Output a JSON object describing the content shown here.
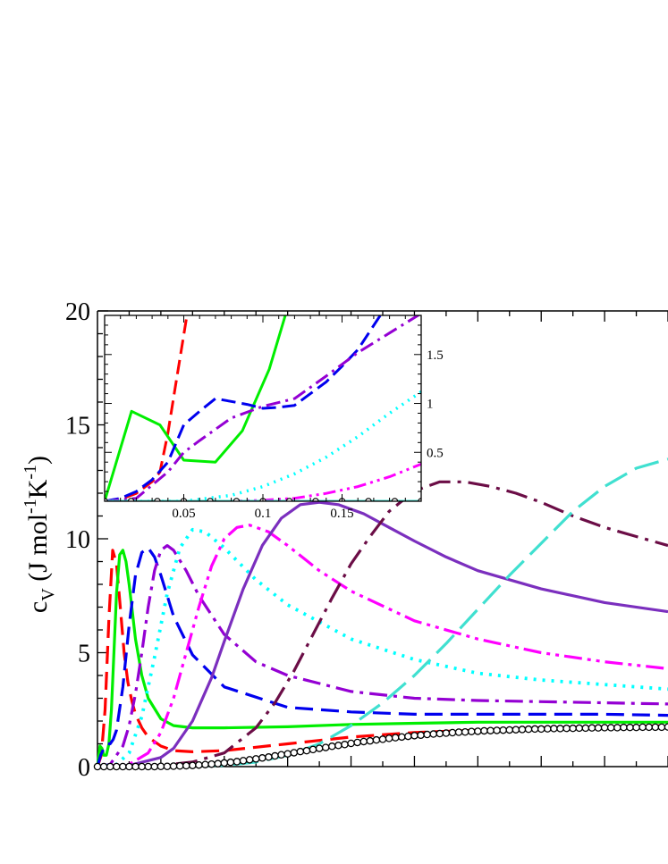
{
  "chart_data": {
    "main": {
      "type": "line",
      "ylabel": {
        "base": "c",
        "sub": "V",
        "pre": " (J mol",
        "sup1": "-1",
        "mid": "K",
        "sup2": "-1",
        "post": ")"
      },
      "xlim": [
        0,
        0.9
      ],
      "ylim": [
        0,
        20
      ],
      "yticks": [
        0,
        5,
        10,
        15,
        20
      ],
      "yticks_minor_step": 1,
      "xticks_minor_step": 0.05,
      "xticks_major_step": 0.1,
      "series": [
        {
          "color": "#ff0000",
          "dash": "20,9",
          "width": 3.2,
          "x": [
            0,
            0.006,
            0.012,
            0.018,
            0.024,
            0.03,
            0.036,
            0.042,
            0.048,
            0.054,
            0.06,
            0.07,
            0.08,
            0.1,
            0.12,
            0.15,
            0.2,
            0.3,
            0.4,
            0.5,
            0.6,
            0.7,
            0.8,
            0.9
          ],
          "y": [
            0,
            0.5,
            2.5,
            6.5,
            9.5,
            8.9,
            7.0,
            5.0,
            3.7,
            2.9,
            2.3,
            1.7,
            1.3,
            0.9,
            0.7,
            0.65,
            0.7,
            1.0,
            1.3,
            1.5,
            1.6,
            1.7,
            1.75,
            1.8
          ]
        },
        {
          "color": "#00ee00",
          "dash": "",
          "width": 3.2,
          "x": [
            0,
            0.004,
            0.007,
            0.01,
            0.014,
            0.018,
            0.022,
            0.026,
            0.03,
            0.035,
            0.04,
            0.045,
            0.05,
            0.055,
            0.06,
            0.07,
            0.08,
            0.1,
            0.12,
            0.15,
            0.2,
            0.3,
            0.4,
            0.5,
            0.6,
            0.7,
            0.8,
            0.9
          ],
          "y": [
            0,
            0.9,
            0.8,
            0.5,
            0.5,
            1.0,
            2.5,
            5.0,
            7.6,
            9.3,
            9.5,
            9.0,
            8.0,
            6.8,
            5.6,
            4.0,
            3.0,
            2.1,
            1.8,
            1.7,
            1.7,
            1.75,
            1.85,
            1.9,
            1.95,
            1.95,
            1.95,
            1.95
          ]
        },
        {
          "color": "#0000ee",
          "dash": "20,9",
          "width": 3.2,
          "x": [
            0,
            0.005,
            0.01,
            0.015,
            0.02,
            0.025,
            0.03,
            0.04,
            0.05,
            0.06,
            0.07,
            0.08,
            0.09,
            0.1,
            0.12,
            0.15,
            0.2,
            0.3,
            0.4,
            0.5,
            0.6,
            0.7,
            0.8,
            0.9
          ],
          "y": [
            0,
            0.5,
            0.8,
            1.0,
            1.0,
            1.2,
            1.6,
            3.5,
            6.2,
            8.4,
            9.4,
            9.6,
            9.2,
            8.4,
            6.6,
            4.9,
            3.5,
            2.6,
            2.4,
            2.3,
            2.3,
            2.3,
            2.3,
            2.25
          ]
        },
        {
          "color": "#9400d3",
          "dash": "20,7,4,7",
          "width": 3.2,
          "x": [
            0,
            0.02,
            0.04,
            0.05,
            0.06,
            0.07,
            0.08,
            0.09,
            0.1,
            0.11,
            0.12,
            0.14,
            0.16,
            0.2,
            0.25,
            0.3,
            0.4,
            0.5,
            0.6,
            0.7,
            0.8,
            0.9
          ],
          "y": [
            0,
            0.1,
            0.9,
            1.8,
            3.2,
            5.0,
            7.0,
            8.6,
            9.5,
            9.7,
            9.5,
            8.6,
            7.5,
            5.8,
            4.6,
            4.0,
            3.3,
            3.0,
            2.9,
            2.85,
            2.8,
            2.75
          ]
        },
        {
          "color": "#00ffff",
          "dash": "3,7",
          "width": 3.8,
          "x": [
            0,
            0.03,
            0.05,
            0.07,
            0.09,
            0.11,
            0.13,
            0.15,
            0.17,
            0.2,
            0.25,
            0.3,
            0.4,
            0.5,
            0.6,
            0.7,
            0.8,
            0.9
          ],
          "y": [
            0,
            0.1,
            0.6,
            2.2,
            4.8,
            7.6,
            9.6,
            10.4,
            10.3,
            9.6,
            8.2,
            7.1,
            5.6,
            4.7,
            4.1,
            3.8,
            3.6,
            3.4
          ]
        },
        {
          "color": "#ff00ff",
          "dash": "20,6,4,6,4,6",
          "width": 3.2,
          "x": [
            0,
            0.05,
            0.08,
            0.1,
            0.12,
            0.14,
            0.16,
            0.18,
            0.2,
            0.22,
            0.24,
            0.27,
            0.3,
            0.35,
            0.4,
            0.5,
            0.6,
            0.7,
            0.8,
            0.9
          ],
          "y": [
            0,
            0.1,
            0.6,
            1.5,
            3.0,
            5.0,
            7.0,
            8.8,
            10.0,
            10.5,
            10.6,
            10.3,
            9.7,
            8.6,
            7.7,
            6.4,
            5.6,
            5.0,
            4.6,
            4.3
          ]
        },
        {
          "color": "#7b2fbe",
          "dash": "",
          "width": 3.2,
          "x": [
            0,
            0.05,
            0.1,
            0.12,
            0.15,
            0.18,
            0.2,
            0.23,
            0.26,
            0.29,
            0.32,
            0.35,
            0.38,
            0.42,
            0.46,
            0.5,
            0.55,
            0.6,
            0.7,
            0.8,
            0.9
          ],
          "y": [
            0,
            0.05,
            0.4,
            0.8,
            2.0,
            3.9,
            5.5,
            7.8,
            9.7,
            10.9,
            11.5,
            11.6,
            11.5,
            11.1,
            10.5,
            9.9,
            9.2,
            8.6,
            7.8,
            7.2,
            6.8
          ]
        },
        {
          "color": "#6b0d46",
          "dash": "24,8,4,8",
          "width": 3.2,
          "x": [
            0,
            0.1,
            0.15,
            0.2,
            0.25,
            0.28,
            0.31,
            0.34,
            0.37,
            0.4,
            0.43,
            0.46,
            0.5,
            0.54,
            0.58,
            0.62,
            0.66,
            0.7,
            0.75,
            0.8,
            0.85,
            0.9
          ],
          "y": [
            0,
            0.05,
            0.2,
            0.6,
            1.7,
            2.8,
            4.2,
            5.8,
            7.4,
            8.9,
            10.1,
            11.2,
            12.1,
            12.5,
            12.5,
            12.3,
            12.0,
            11.6,
            11.0,
            10.5,
            10.1,
            9.7
          ]
        },
        {
          "color": "#40e0d0",
          "dash": "28,10",
          "width": 3.2,
          "x": [
            0,
            0.2,
            0.25,
            0.3,
            0.35,
            0.4,
            0.45,
            0.5,
            0.55,
            0.6,
            0.65,
            0.7,
            0.75,
            0.8,
            0.85,
            0.9
          ],
          "y": [
            0,
            0.05,
            0.2,
            0.5,
            1.0,
            1.8,
            2.8,
            4.0,
            5.4,
            6.9,
            8.4,
            9.8,
            11.2,
            12.3,
            13.1,
            13.5
          ]
        },
        {
          "color": "#000000",
          "dash": "",
          "width": 0,
          "markers": "circle",
          "x": [
            0,
            0.01,
            0.02,
            0.03,
            0.04,
            0.05,
            0.06,
            0.07,
            0.08,
            0.09,
            0.1,
            0.11,
            0.12,
            0.13,
            0.14,
            0.15,
            0.16,
            0.17,
            0.18,
            0.19,
            0.2,
            0.21,
            0.22,
            0.23,
            0.24,
            0.25,
            0.26,
            0.27,
            0.28,
            0.29,
            0.3,
            0.31,
            0.32,
            0.33,
            0.34,
            0.35,
            0.36,
            0.37,
            0.38,
            0.39,
            0.4,
            0.41,
            0.42,
            0.43,
            0.44,
            0.45,
            0.46,
            0.47,
            0.48,
            0.49,
            0.5,
            0.51,
            0.52,
            0.53,
            0.54,
            0.55,
            0.56,
            0.57,
            0.58,
            0.59,
            0.6,
            0.61,
            0.62,
            0.63,
            0.64,
            0.65,
            0.66,
            0.67,
            0.68,
            0.69,
            0.7,
            0.71,
            0.72,
            0.73,
            0.74,
            0.75,
            0.76,
            0.77,
            0.78,
            0.79,
            0.8,
            0.81,
            0.82,
            0.83,
            0.84,
            0.85,
            0.86,
            0.87,
            0.88,
            0.89,
            0.9
          ],
          "y": [
            0,
            0,
            0,
            0,
            0,
            0,
            0,
            0,
            0,
            0,
            0.01,
            0.01,
            0.02,
            0.03,
            0.04,
            0.05,
            0.07,
            0.09,
            0.11,
            0.13,
            0.16,
            0.19,
            0.22,
            0.26,
            0.3,
            0.34,
            0.38,
            0.42,
            0.47,
            0.52,
            0.56,
            0.61,
            0.66,
            0.7,
            0.75,
            0.8,
            0.84,
            0.89,
            0.93,
            0.97,
            1.02,
            1.06,
            1.1,
            1.13,
            1.17,
            1.2,
            1.24,
            1.27,
            1.3,
            1.33,
            1.36,
            1.38,
            1.41,
            1.43,
            1.45,
            1.47,
            1.49,
            1.51,
            1.52,
            1.54,
            1.55,
            1.57,
            1.58,
            1.59,
            1.6,
            1.61,
            1.62,
            1.63,
            1.64,
            1.65,
            1.65,
            1.66,
            1.67,
            1.67,
            1.68,
            1.68,
            1.69,
            1.69,
            1.7,
            1.7,
            1.71,
            1.71,
            1.71,
            1.72,
            1.72,
            1.72,
            1.73,
            1.73,
            1.73,
            1.73,
            1.74
          ]
        }
      ]
    },
    "inset": {
      "type": "line",
      "xlim": [
        0,
        0.2
      ],
      "ylim": [
        0,
        1.9
      ],
      "xticks": [
        0.05,
        0.1,
        0.15
      ],
      "xtick_labels": [
        "0.05",
        "0.1",
        "0.15"
      ],
      "yticks": [
        0.5,
        1,
        1.5
      ],
      "ytick_labels": [
        "0.5",
        "1",
        "1.5"
      ],
      "xticks_minor_step": 0.01,
      "yticks_minor_step": 0.1,
      "series": [
        {
          "color": "#ff0000",
          "dash": "16,7",
          "width": 3,
          "x": [
            0,
            0.01,
            0.02,
            0.03,
            0.035,
            0.04,
            0.045,
            0.05,
            0.055
          ],
          "y": [
            0,
            0.02,
            0.08,
            0.2,
            0.3,
            0.7,
            1.2,
            1.7,
            2.2
          ]
        },
        {
          "color": "#00ee00",
          "dash": "",
          "width": 3,
          "x": [
            0,
            0.017,
            0.035,
            0.05,
            0.07,
            0.087,
            0.104,
            0.116
          ],
          "y": [
            0,
            0.92,
            0.78,
            0.42,
            0.4,
            0.72,
            1.35,
            2.0
          ]
        },
        {
          "color": "#0000ee",
          "dash": "16,7",
          "width": 3,
          "x": [
            0,
            0.01,
            0.02,
            0.03,
            0.04,
            0.05,
            0.06,
            0.07,
            0.08,
            0.09,
            0.1,
            0.11,
            0.12,
            0.13,
            0.14,
            0.15,
            0.16,
            0.175
          ],
          "y": [
            0,
            0.03,
            0.1,
            0.22,
            0.4,
            0.78,
            0.92,
            1.05,
            1.02,
            0.99,
            0.95,
            0.96,
            0.98,
            1.1,
            1.22,
            1.38,
            1.55,
            1.92
          ]
        },
        {
          "color": "#9400d3",
          "dash": "16,6,3,6",
          "width": 3,
          "x": [
            0,
            0.02,
            0.04,
            0.05,
            0.06,
            0.08,
            0.1,
            0.12,
            0.14,
            0.16,
            0.18,
            0.2
          ],
          "y": [
            0,
            0.03,
            0.3,
            0.5,
            0.62,
            0.85,
            0.97,
            1.05,
            1.28,
            1.52,
            1.72,
            1.92
          ]
        },
        {
          "color": "#00ffff",
          "dash": "2,6",
          "width": 3.5,
          "x": [
            0,
            0.05,
            0.08,
            0.1,
            0.12,
            0.14,
            0.16,
            0.18,
            0.2
          ],
          "y": [
            0,
            0.0,
            0.06,
            0.15,
            0.28,
            0.45,
            0.66,
            0.9,
            1.12
          ]
        },
        {
          "color": "#ff00ff",
          "dash": "14,5,3,5,3,5",
          "width": 3,
          "x": [
            0,
            0.08,
            0.1,
            0.12,
            0.14,
            0.16,
            0.18,
            0.2
          ],
          "y": [
            0,
            0.0,
            0.01,
            0.03,
            0.08,
            0.15,
            0.25,
            0.38
          ]
        },
        {
          "color": "#40e0d0",
          "dash": "",
          "width": 3,
          "x": [
            0,
            0.2
          ],
          "y": [
            0.0,
            0.0
          ]
        },
        {
          "color": "#000000",
          "dash": "",
          "width": 0,
          "markers": "circle",
          "x": [
            0.0,
            0.0167,
            0.0333,
            0.05,
            0.0667,
            0.0833,
            0.1,
            0.1167,
            0.1333,
            0.15,
            0.1667,
            0.1833,
            0.2
          ],
          "y": [
            0,
            0,
            0,
            0,
            0,
            0,
            0,
            0,
            0,
            0,
            0,
            0,
            0
          ]
        }
      ]
    }
  }
}
